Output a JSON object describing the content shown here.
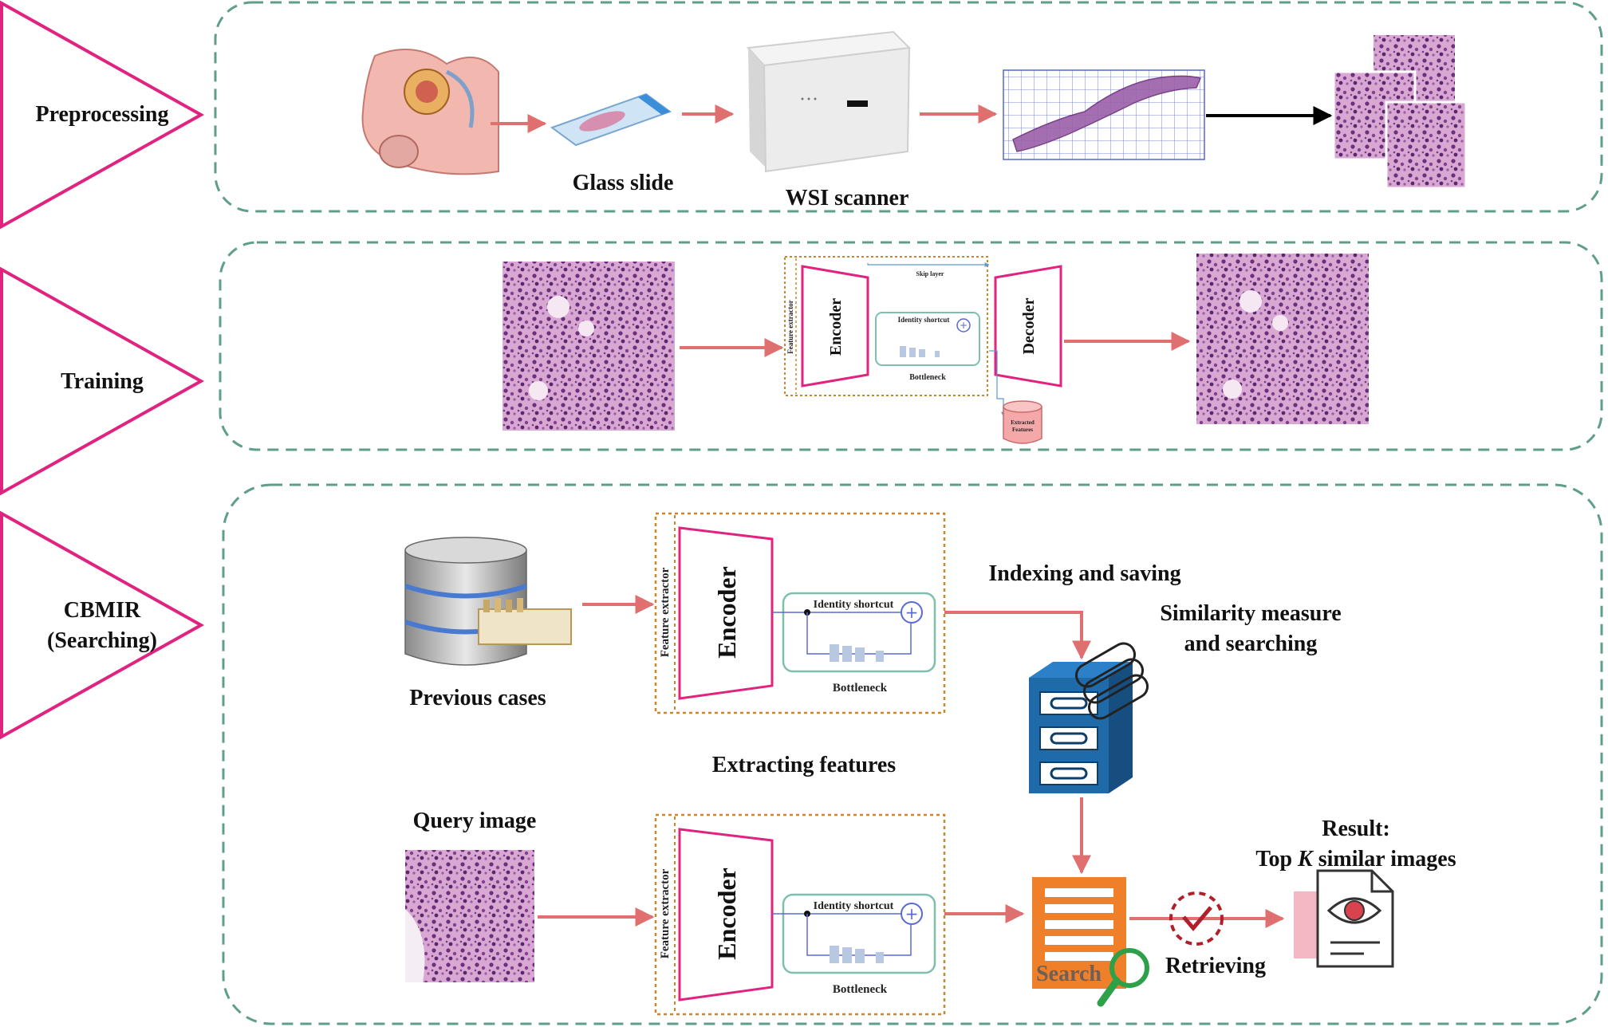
{
  "stages": [
    {
      "id": "preprocessing",
      "label": "Preprocessing"
    },
    {
      "id": "training",
      "label": "Training"
    },
    {
      "id": "cbmir",
      "label_line1": "CBMIR",
      "label_line2": "(Searching)"
    }
  ],
  "preprocessing": {
    "glass_slide": "Glass slide",
    "wsi_scanner": "WSI scanner"
  },
  "model": {
    "feature_extractor": "Feature extractor",
    "encoder": "Encoder",
    "decoder": "Decoder",
    "identity_shortcut": "Identity shortcut",
    "bottleneck": "Bottleneck",
    "skip_layer": "Skip layer",
    "extracted_features_line1": "Extracted",
    "extracted_features_line2": "Features"
  },
  "cbmir": {
    "previous_cases": "Previous cases",
    "indexing_and_saving": "Indexing and saving",
    "similarity_line1": "Similarity measure",
    "similarity_line2": "and searching",
    "extracting_features": "Extracting features",
    "query_image": "Query image",
    "result_line1": "Result:",
    "result_line2_pre": "Top ",
    "result_line2_k": "K",
    "result_line2_post": " similar images",
    "retrieving": "Retrieving",
    "search": "Search"
  },
  "colors": {
    "stage_triangle": "#e0237f",
    "dashed_panel": "#5f9e8a",
    "arrow": "#e07070",
    "encoder_outline": "#e0237f",
    "feature_box": "#c9872c",
    "bottleneck_box": "#7fbfb0",
    "cabinet": "#1f6aa8",
    "search_orange": "#f07f2a",
    "tissue": "#b06aa8"
  }
}
